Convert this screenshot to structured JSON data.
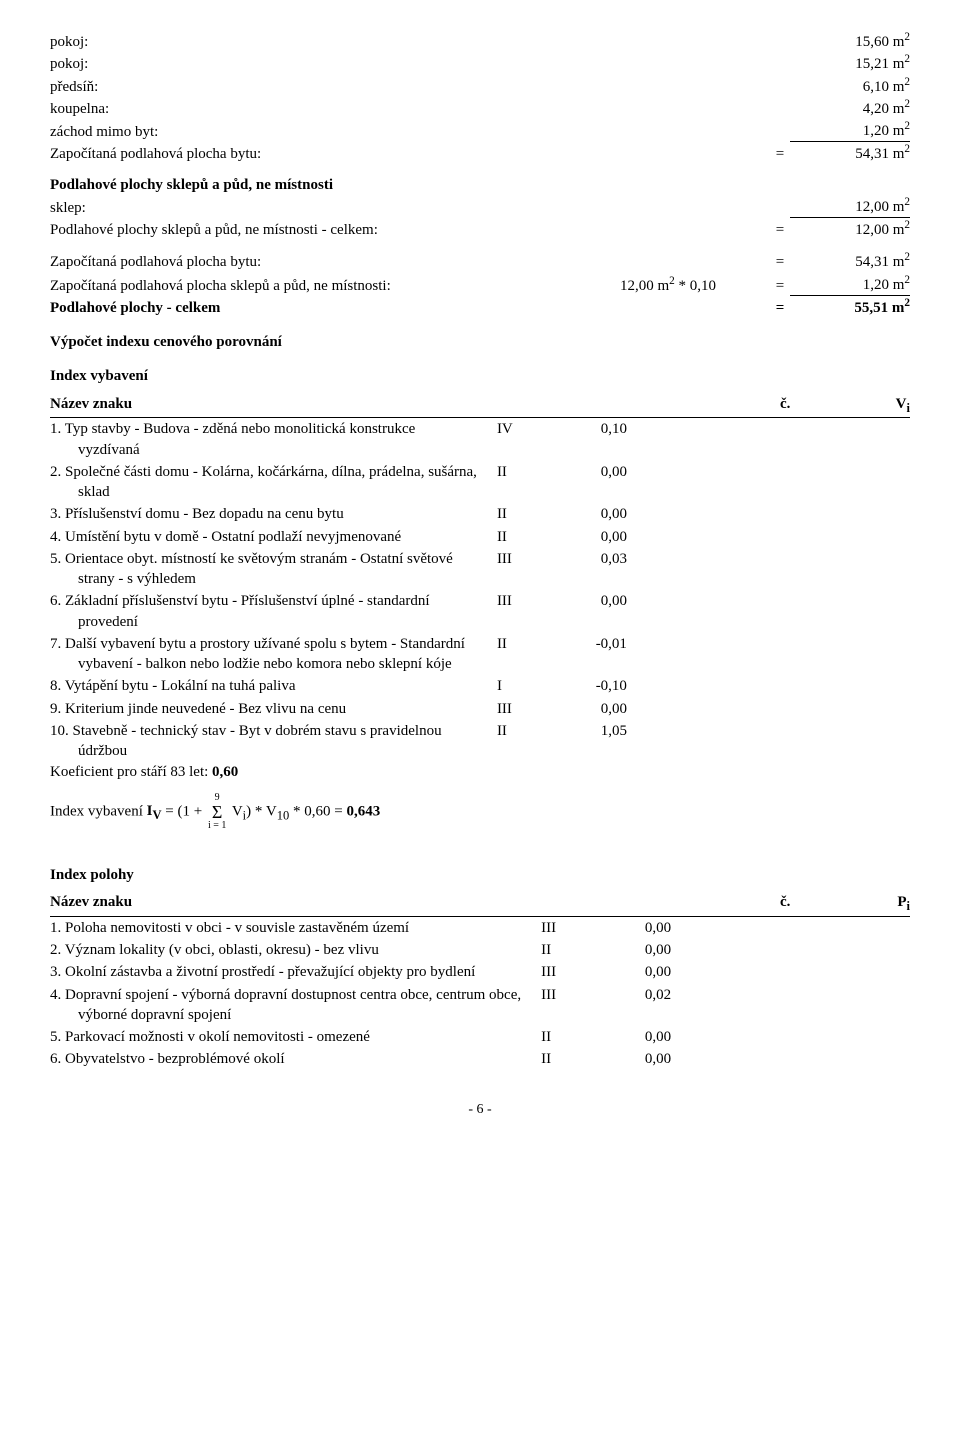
{
  "rooms": {
    "r1": {
      "label": "pokoj:",
      "val": "15,60 m"
    },
    "r2": {
      "label": "pokoj:",
      "val": "15,21 m"
    },
    "r3": {
      "label": "předsíň:",
      "val": "6,10 m"
    },
    "r4": {
      "label": "koupelna:",
      "val": "4,20 m"
    },
    "r5": {
      "label": "záchod mimo byt:",
      "val": "1,20 m"
    },
    "sum1": {
      "label": "Započítaná podlahová plocha bytu:",
      "eq": "=",
      "val": "54,31 m"
    },
    "subhead1": "Podlahové plochy sklepů a půd, ne místnosti",
    "r6": {
      "label": "sklep:",
      "val": "12,00 m"
    },
    "sum2": {
      "label": "Podlahové plochy sklepů a půd, ne místnosti - celkem:",
      "eq": "=",
      "val": "12,00 m"
    },
    "sum3": {
      "label": "Započítaná podlahová plocha bytu:",
      "eq": "=",
      "val": "54,31 m"
    },
    "r7": {
      "label": "Započítaná podlahová plocha sklepů a půd, ne místnosti:",
      "mid": "12,00 m",
      "midtail": " * 0,10",
      "eq": "=",
      "val": "1,20 m"
    },
    "sum4": {
      "label": "Podlahové plochy - celkem",
      "eq": "=",
      "val": "55,51 m"
    }
  },
  "calc_title": "Výpočet indexu cenového porovnání",
  "iv": {
    "title": "Index vybavení",
    "head": {
      "name": "Název znaku",
      "num": "č.",
      "val": "V",
      "valsub": "i"
    },
    "rows": [
      {
        "name": "1. Typ stavby - Budova - zděná nebo monolitická konstrukce",
        "sub": "vyzdívaná",
        "num": "IV",
        "val": "0,10"
      },
      {
        "name": "2. Společné části domu - Kolárna, kočárkárna, dílna, prádelna, sušárna,",
        "sub": "sklad",
        "num": "II",
        "val": "0,00"
      },
      {
        "name": "3. Příslušenství domu - Bez dopadu na cenu bytu",
        "num": "II",
        "val": "0,00"
      },
      {
        "name": "4. Umístění bytu v domě - Ostatní podlaží nevyjmenované",
        "num": "II",
        "val": "0,00"
      },
      {
        "name": "5. Orientace obyt. místností ke světovým stranám - Ostatní světové",
        "sub": "strany - s výhledem",
        "num": "III",
        "val": "0,03"
      },
      {
        "name": "6. Základní příslušenství bytu - Příslušenství úplné - standardní",
        "sub": "provedení",
        "num": "III",
        "val": "0,00"
      },
      {
        "name": "7. Další vybavení bytu a prostory užívané spolu s bytem - Standardní",
        "sub": "vybavení - balkon nebo lodžie nebo komora nebo sklepní kóje",
        "num": "II",
        "val": "-0,01"
      },
      {
        "name": "8. Vytápění bytu - Lokální na tuhá paliva",
        "num": "I",
        "val": "-0,10"
      },
      {
        "name": "9. Kriterium jinde neuvedené - Bez vlivu na cenu",
        "num": "III",
        "val": "0,00"
      },
      {
        "name": "10. Stavebně - technický stav - Byt v dobrém stavu s pravidelnou",
        "sub": "údržbou",
        "num": "II",
        "val": "1,05"
      }
    ],
    "koef": {
      "pre": "Koeficient pro stáří 83 let: ",
      "val": "0,60"
    },
    "formula": {
      "pre": "Index vybavení ",
      "iv": "I",
      "ivsub": "V",
      "mid1": " = (1 + ",
      "sigtop": "9",
      "sigbot": "i = 1",
      "mid2": " V",
      "mid2sub": "i",
      "mid3": ") * V",
      "mid3sub": "10",
      "mid4": " * 0,60 = ",
      "result": "0,643"
    }
  },
  "ip": {
    "title": "Index polohy",
    "head": {
      "name": "Název znaku",
      "num": "č.",
      "val": "P",
      "valsub": "i"
    },
    "rows": [
      {
        "name": "1. Poloha nemovitosti v obci - v souvisle zastavěném území",
        "num": "III",
        "val": "0,00"
      },
      {
        "name": "2. Význam lokality (v obci, oblasti, okresu) - bez vlivu",
        "num": "II",
        "val": "0,00"
      },
      {
        "name": "3. Okolní zástavba a životní prostředí - převažující objekty pro bydlení",
        "num": "III",
        "val": "0,00"
      },
      {
        "name": "4. Dopravní spojení - výborná dopravní dostupnost centra obce, centrum obce,",
        "sub": "výborné dopravní spojení",
        "num": "III",
        "val": "0,02"
      },
      {
        "name": "5. Parkovací možnosti v okolí nemovitosti - omezené",
        "num": "II",
        "val": "0,00"
      },
      {
        "name": "6. Obyvatelstvo - bezproblémové okolí",
        "num": "II",
        "val": "0,00"
      }
    ]
  },
  "pagefoot": "- 6 -"
}
